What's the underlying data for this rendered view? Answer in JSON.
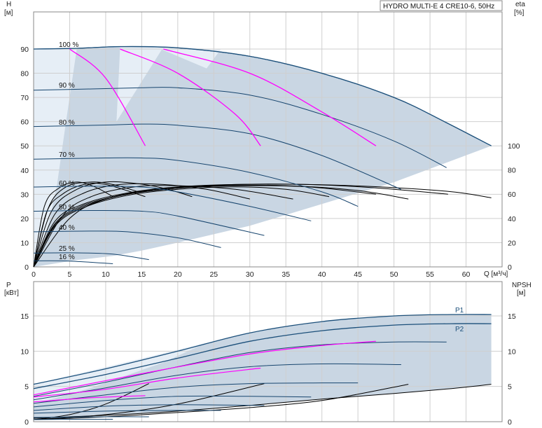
{
  "chart_title": "HYDRO MULTI-E 4 CRE10-6, 50Hz",
  "chart_data": [
    {
      "type": "line",
      "panel": "head",
      "ylabel": "H",
      "yunit": "[м]",
      "y2label": "eta",
      "y2unit": "[%]",
      "xlabel": "Q [м³/ч]",
      "xlim": [
        0,
        65
      ],
      "ylim": [
        0,
        90
      ],
      "x_ticks": [
        5,
        10,
        15,
        20,
        25,
        30,
        35,
        40,
        45,
        50,
        55,
        60
      ],
      "y_ticks": [
        0,
        10,
        20,
        30,
        40,
        50,
        60,
        70,
        80,
        90
      ],
      "y2_ticks": [
        0,
        20,
        40,
        60,
        80,
        100
      ],
      "grid": true,
      "speed_labels": [
        "100 %",
        "90 %",
        "80 %",
        "70 %",
        "60 %",
        "50 %",
        "40 %",
        "25 %",
        "16 %"
      ],
      "series": [
        {
          "name": "100 %",
          "x": [
            0,
            6,
            12,
            20,
            30,
            40,
            50,
            57,
            63.5
          ],
          "y": [
            90,
            90.3,
            91,
            90.5,
            87,
            80,
            70,
            60,
            50
          ]
        },
        {
          "name": "90 %",
          "x": [
            0,
            8,
            15,
            20,
            30,
            40,
            50,
            57.3
          ],
          "y": [
            73,
            73.5,
            74,
            74,
            71,
            63,
            52,
            41
          ]
        },
        {
          "name": "80 %",
          "x": [
            0,
            10,
            15,
            20,
            30,
            40,
            51
          ],
          "y": [
            58,
            58.6,
            59,
            58.5,
            55,
            46,
            32
          ]
        },
        {
          "name": "70 %",
          "x": [
            0,
            10,
            15,
            20,
            30,
            40,
            45
          ],
          "y": [
            44.5,
            45,
            45,
            44,
            39,
            31,
            25
          ]
        },
        {
          "name": "60 %",
          "x": [
            0,
            8,
            15,
            20,
            30,
            38.5
          ],
          "y": [
            33,
            33.3,
            33,
            31,
            25,
            19
          ]
        },
        {
          "name": "50 %",
          "x": [
            0,
            8,
            15,
            20,
            32
          ],
          "y": [
            23,
            23.3,
            23,
            21,
            13
          ]
        },
        {
          "name": "40 %",
          "x": [
            0,
            8,
            13,
            20,
            26
          ],
          "y": [
            14.5,
            14.8,
            14.5,
            12,
            8
          ]
        },
        {
          "name": "25 %",
          "x": [
            0,
            6,
            11,
            16
          ],
          "y": [
            5.7,
            5.8,
            5.3,
            3
          ]
        },
        {
          "name": "16 %",
          "x": [
            0,
            5,
            11
          ],
          "y": [
            2.5,
            2.4,
            1.3
          ]
        }
      ],
      "limit_curves": [
        {
          "x": [
            5,
            10,
            15.5
          ],
          "y": [
            90,
            78,
            50
          ]
        },
        {
          "x": [
            12,
            20,
            28,
            31.5
          ],
          "y": [
            90,
            80,
            63,
            50
          ]
        },
        {
          "x": [
            18,
            30,
            40,
            47.5
          ],
          "y": [
            90,
            80,
            64,
            50
          ]
        }
      ],
      "efficiency_series_eta": [
        {
          "x": [
            0,
            5,
            10,
            17,
            25,
            35,
            45,
            52
          ],
          "y": [
            0,
            40,
            56,
            64,
            67,
            67,
            63,
            56
          ]
        },
        {
          "x": [
            0,
            4,
            8,
            14,
            20,
            28,
            36
          ],
          "y": [
            0,
            42,
            58,
            66,
            67,
            64,
            56
          ]
        },
        {
          "x": [
            0,
            3,
            7,
            12,
            18,
            24,
            30
          ],
          "y": [
            0,
            44,
            61,
            68,
            68,
            64,
            56
          ]
        },
        {
          "x": [
            0,
            2.5,
            6,
            10,
            14,
            18,
            22
          ],
          "y": [
            0,
            46,
            64,
            70,
            69,
            65,
            58
          ]
        },
        {
          "x": [
            0,
            2,
            4.5,
            8,
            11,
            14.5
          ],
          "y": [
            0,
            48,
            66,
            70,
            68,
            62
          ]
        },
        {
          "x": [
            0,
            1.5,
            3.5,
            6,
            8.5,
            11
          ],
          "y": [
            0,
            50,
            65,
            70,
            66,
            58
          ]
        },
        {
          "x": [
            0,
            1.8,
            4,
            7,
            10,
            15.5
          ],
          "y": [
            0,
            45,
            60,
            68,
            68,
            58
          ]
        },
        {
          "x": [
            0,
            3,
            7,
            13,
            20,
            28,
            38,
            48,
            58,
            63.5
          ],
          "y": [
            0,
            38,
            52,
            61,
            66,
            68,
            68,
            66,
            62,
            57
          ]
        },
        {
          "x": [
            0,
            3,
            7,
            13,
            20,
            28,
            38,
            48,
            57.5
          ],
          "y": [
            0,
            36,
            51,
            60,
            65,
            68,
            68,
            65,
            60
          ]
        },
        {
          "x": [
            0,
            3,
            7,
            13,
            20,
            28,
            38,
            47.5
          ],
          "y": [
            0,
            35,
            50,
            60,
            65,
            67,
            66,
            60
          ]
        },
        {
          "x": [
            0,
            3,
            7,
            13,
            20,
            28,
            35,
            41
          ],
          "y": [
            0,
            34,
            49,
            59,
            64,
            66,
            64,
            58
          ]
        }
      ]
    },
    {
      "type": "line",
      "panel": "power",
      "ylabel": "P",
      "yunit": "[кВт]",
      "y2label": "NPSH",
      "y2unit": "[м]",
      "xlim": [
        0,
        65
      ],
      "ylim": [
        0,
        17
      ],
      "y_ticks": [
        0,
        5,
        10,
        15
      ],
      "y2_ticks": [
        0,
        5,
        10,
        15
      ],
      "grid": true,
      "series": [
        {
          "name": "P1",
          "x": [
            0,
            10,
            20,
            30,
            40,
            50,
            58,
            63.5
          ],
          "y": [
            5.3,
            7.5,
            10,
            12.6,
            14.2,
            15,
            15.2,
            15.2
          ]
        },
        {
          "name": "P2",
          "x": [
            0,
            10,
            20,
            30,
            40,
            50,
            58,
            63.5
          ],
          "y": [
            4.7,
            6.7,
            9,
            11.4,
            12.9,
            13.7,
            13.9,
            13.9
          ]
        }
      ],
      "power_curves": [
        {
          "x": [
            0,
            10,
            20,
            30,
            40,
            50,
            57.3
          ],
          "y": [
            3.6,
            5.6,
            7.8,
            9.8,
            10.9,
            11.3,
            11.3
          ]
        },
        {
          "x": [
            0,
            10,
            20,
            30,
            40,
            51
          ],
          "y": [
            3.1,
            4.8,
            6.6,
            7.8,
            8.2,
            8.1
          ]
        },
        {
          "x": [
            0,
            10,
            20,
            30,
            40,
            45
          ],
          "y": [
            2.6,
            3.8,
            4.9,
            5.4,
            5.5,
            5.5
          ]
        },
        {
          "x": [
            0,
            10,
            20,
            30,
            38.5
          ],
          "y": [
            2.1,
            3.0,
            3.6,
            3.6,
            3.5
          ]
        },
        {
          "x": [
            0,
            10,
            20,
            32
          ],
          "y": [
            1.6,
            2.2,
            2.4,
            2.3
          ]
        },
        {
          "x": [
            0,
            10,
            20,
            26
          ],
          "y": [
            1.2,
            1.5,
            1.6,
            1.6
          ]
        },
        {
          "x": [
            0,
            10,
            16
          ],
          "y": [
            0.6,
            0.7,
            0.7
          ]
        },
        {
          "x": [
            0,
            5,
            11
          ],
          "y": [
            0.3,
            0.35,
            0.35
          ]
        }
      ],
      "limit_power_curves": [
        {
          "x": [
            0,
            8,
            15.5
          ],
          "y": [
            2.8,
            3.4,
            3.7
          ]
        },
        {
          "x": [
            0,
            10,
            20,
            31.5
          ],
          "y": [
            3.5,
            4.6,
            6.2,
            7.6
          ]
        },
        {
          "x": [
            0,
            15,
            30,
            40,
            47.5
          ],
          "y": [
            3.8,
            6.8,
            9.6,
            10.8,
            11.4
          ]
        }
      ],
      "npsh_curves": [
        {
          "x": [
            0,
            10,
            20,
            30,
            40,
            50,
            58,
            63.5
          ],
          "y": [
            0.5,
            0.9,
            1.5,
            2.3,
            3.2,
            4.0,
            4.7,
            5.3
          ]
        },
        {
          "x": [
            0,
            10,
            20,
            30,
            40,
            52
          ],
          "y": [
            0.3,
            0.7,
            1.3,
            2.0,
            3.0,
            5.3
          ]
        },
        {
          "x": [
            0,
            5,
            10,
            16
          ],
          "y": [
            0.3,
            1.0,
            2.5,
            5.4
          ]
        },
        {
          "x": [
            0,
            10,
            20,
            32
          ],
          "y": [
            0.3,
            1.0,
            2.5,
            5.4
          ]
        }
      ]
    }
  ],
  "legend_labels": {
    "p1": "P1",
    "p2": "P2"
  },
  "colors": {
    "envelope_fill": "#c9d6e3",
    "envelope_light": "#e6eef6",
    "envelope_edge": "#1b4f7a",
    "speed_curve": "#17456e",
    "limit_curve": "#ff00ff",
    "efficiency_curve": "#000000",
    "grid": "#cfcfcf"
  }
}
